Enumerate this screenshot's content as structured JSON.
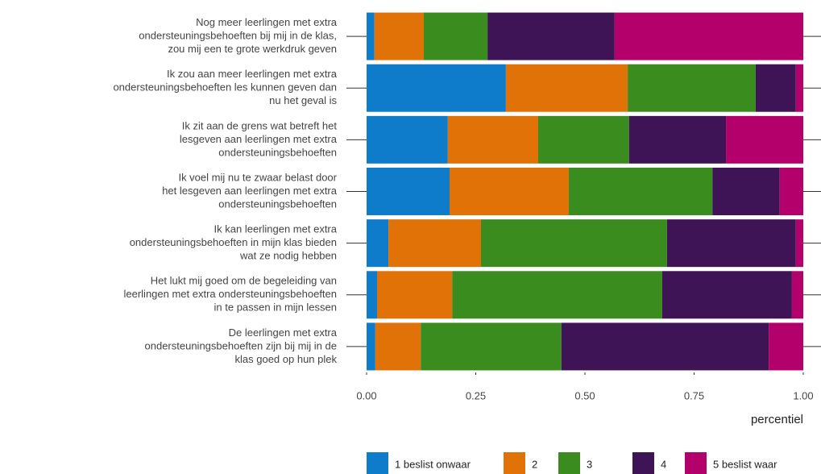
{
  "chart_data": {
    "type": "stacked_barh",
    "categories": [
      [
        "Nog meer leerlingen met extra",
        "ondersteuningsbehoeften bij mij in de klas,",
        "zou mij een te grote werkdruk geven"
      ],
      [
        "Ik zou aan meer leerlingen met extra",
        "ondersteuningsbehoeften les kunnen geven dan",
        "nu het geval is"
      ],
      [
        "Ik zit aan de grens wat betreft het",
        "lesgeven aan leerlingen met extra",
        "ondersteuningsbehoeften"
      ],
      [
        "Ik voel mij nu te zwaar belast door",
        "het lesgeven aan leerlingen met extra",
        "ondersteuningsbehoeften"
      ],
      [
        "Ik kan leerlingen met extra",
        "ondersteuningsbehoeften in mijn klas bieden",
        "wat ze nodig hebben"
      ],
      [
        "Het lukt mij goed om de begeleiding van",
        "leerlingen met extra ondersteuningsbehoeften",
        "in te passen in mijn lessen"
      ],
      [
        "De leerlingen met extra",
        "ondersteuningsbehoeften zijn bij mij in de",
        "klas goed op hun plek"
      ]
    ],
    "series": [
      {
        "name": "1 beslist onwaar",
        "color": "#0e7bcb",
        "values": [
          0.018,
          0.319,
          0.186,
          0.19,
          0.05,
          0.024,
          0.02
        ]
      },
      {
        "name": "2",
        "color": "#e07208",
        "values": [
          0.113,
          0.279,
          0.207,
          0.273,
          0.212,
          0.172,
          0.104
        ]
      },
      {
        "name": "3",
        "color": "#3b8c1f",
        "values": [
          0.146,
          0.293,
          0.208,
          0.329,
          0.426,
          0.481,
          0.322
        ]
      },
      {
        "name": "4",
        "color": "#3e1456",
        "values": [
          0.291,
          0.092,
          0.222,
          0.154,
          0.295,
          0.297,
          0.475
        ]
      },
      {
        "name": "5 beslist waar",
        "color": "#b3006b",
        "values": [
          0.432,
          0.017,
          0.177,
          0.054,
          0.017,
          0.026,
          0.079
        ]
      }
    ],
    "xlabel": "percentiel",
    "xlim": [
      0,
      1
    ],
    "xticks": [
      {
        "value": 0,
        "label": "0.00"
      },
      {
        "value": 0.25,
        "label": "0.25"
      },
      {
        "value": 0.5,
        "label": "0.50"
      },
      {
        "value": 0.75,
        "label": "0.75"
      },
      {
        "value": 1,
        "label": "1.00"
      }
    ]
  }
}
